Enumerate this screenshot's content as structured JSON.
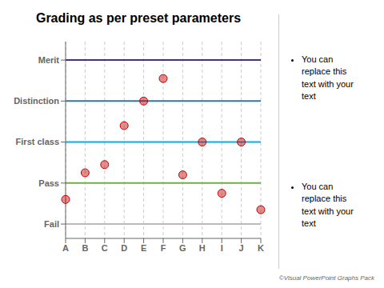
{
  "chart_data": {
    "type": "scatter",
    "title": "Grading as per preset parameters",
    "categories": [
      "A",
      "B",
      "C",
      "D",
      "E",
      "F",
      "G",
      "H",
      "I",
      "J",
      "K"
    ],
    "values": [
      1.6,
      2.25,
      2.45,
      3.4,
      4.0,
      4.55,
      2.2,
      3.0,
      1.75,
      3.0,
      1.35
    ],
    "color": "#c00000",
    "marker": "circle",
    "ylim": [
      0.65,
      5.45
    ],
    "yticks": [
      {
        "value": 1,
        "label": "Fail"
      },
      {
        "value": 2,
        "label": "Pass"
      },
      {
        "value": 3,
        "label": "First class"
      },
      {
        "value": 4,
        "label": "Distinction"
      },
      {
        "value": 5,
        "label": "Merit"
      }
    ],
    "reference_lines": [
      {
        "value": 5,
        "color": "#4b2e83"
      },
      {
        "value": 4,
        "color": "#2e75b6"
      },
      {
        "value": 3,
        "color": "#00b0f0"
      },
      {
        "value": 2,
        "color": "#70ad47"
      },
      {
        "value": 1,
        "color": "#c0b8b8"
      }
    ],
    "grid": true,
    "annotations": [
      "You can\nreplace this\ntext with your\ntext",
      "You can\nreplace this\ntext with your\ntext",
      "©Visual PowerPoint Graphs Pack"
    ]
  }
}
